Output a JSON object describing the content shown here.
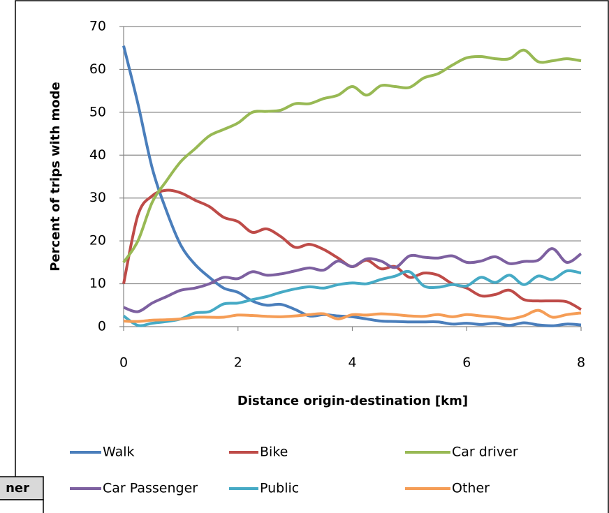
{
  "chart_data": {
    "type": "line",
    "y_label": "Percent of trips with mode",
    "x_label": "Distance origin-destination [km]",
    "x": [
      0,
      0.25,
      0.5,
      0.75,
      1,
      1.25,
      1.5,
      1.75,
      2,
      2.25,
      2.5,
      2.75,
      3,
      3.25,
      3.5,
      3.75,
      4,
      4.25,
      4.5,
      4.75,
      5,
      5.25,
      5.5,
      5.75,
      6,
      6.25,
      6.5,
      6.75,
      7,
      7.25,
      7.5,
      7.75,
      8
    ],
    "series": [
      {
        "name": "Walk",
        "color": "#4a7ebb",
        "values": [
          65.5,
          52,
          37,
          27,
          19,
          14.5,
          11.5,
          9,
          8,
          6,
          5,
          5.2,
          4,
          2.5,
          2.8,
          2.5,
          2.3,
          1.8,
          1.3,
          1.2,
          1.1,
          1.1,
          1.1,
          0.6,
          0.8,
          0.5,
          0.8,
          0.3,
          0.9,
          0.4,
          0.2,
          0.6,
          0.4
        ]
      },
      {
        "name": "Bike",
        "color": "#be4b48",
        "values": [
          10,
          26,
          30.5,
          31.8,
          31.2,
          29.5,
          28,
          25.5,
          24.5,
          22,
          22.8,
          21,
          18.5,
          19.2,
          18,
          16,
          14,
          15.5,
          13.5,
          14,
          11.5,
          12.5,
          12,
          10,
          9,
          7.2,
          7.5,
          8.5,
          6.3,
          6,
          6,
          5.8,
          4
        ]
      },
      {
        "name": "Car driver",
        "color": "#98b954",
        "values": [
          15,
          20,
          29,
          34,
          38.5,
          41.5,
          44.5,
          46,
          47.5,
          50,
          50.2,
          50.5,
          52,
          52,
          53.2,
          54,
          56,
          54,
          56.2,
          56,
          55.8,
          58,
          59,
          61,
          62.7,
          63,
          62.5,
          62.5,
          64.5,
          61.8,
          62,
          62.5,
          62
        ]
      },
      {
        "name": "Car Passenger",
        "color": "#7d60a0",
        "values": [
          4.5,
          3.5,
          5.5,
          7,
          8.5,
          9,
          10,
          11.5,
          11.2,
          12.8,
          12,
          12.3,
          13,
          13.7,
          13.2,
          15.3,
          14,
          15.8,
          15.3,
          13.8,
          16.5,
          16.2,
          16,
          16.5,
          15,
          15.3,
          16.3,
          14.7,
          15.2,
          15.5,
          18.2,
          15,
          17
        ]
      },
      {
        "name": "Public",
        "color": "#46aac5",
        "values": [
          2.5,
          0.3,
          0.8,
          1.2,
          1.8,
          3.2,
          3.5,
          5.3,
          5.5,
          6.3,
          7,
          8,
          8.8,
          9.3,
          9,
          9.8,
          10.2,
          10,
          11,
          11.8,
          12.8,
          9.5,
          9.2,
          9.8,
          9.5,
          11.5,
          10.3,
          12,
          9.8,
          11.8,
          11,
          13,
          12.5
        ]
      },
      {
        "name": "Other",
        "color": "#f59d56",
        "values": [
          1.3,
          1.2,
          1.5,
          1.6,
          1.8,
          2.2,
          2.2,
          2.2,
          2.7,
          2.6,
          2.4,
          2.3,
          2.5,
          2.8,
          3,
          1.8,
          2.8,
          2.7,
          3,
          2.8,
          2.5,
          2.4,
          2.8,
          2.3,
          2.8,
          2.5,
          2.2,
          1.8,
          2.5,
          3.8,
          2.2,
          2.8,
          3.2
        ]
      }
    ],
    "xlim": [
      0,
      8
    ],
    "xticks": [
      0,
      2,
      4,
      6,
      8
    ],
    "ylim": [
      0,
      70
    ],
    "yticks": [
      0,
      10,
      20,
      30,
      40,
      50,
      60,
      70
    ],
    "grid": true,
    "legend": "bottom"
  },
  "table_fragment": {
    "text": "ner"
  }
}
